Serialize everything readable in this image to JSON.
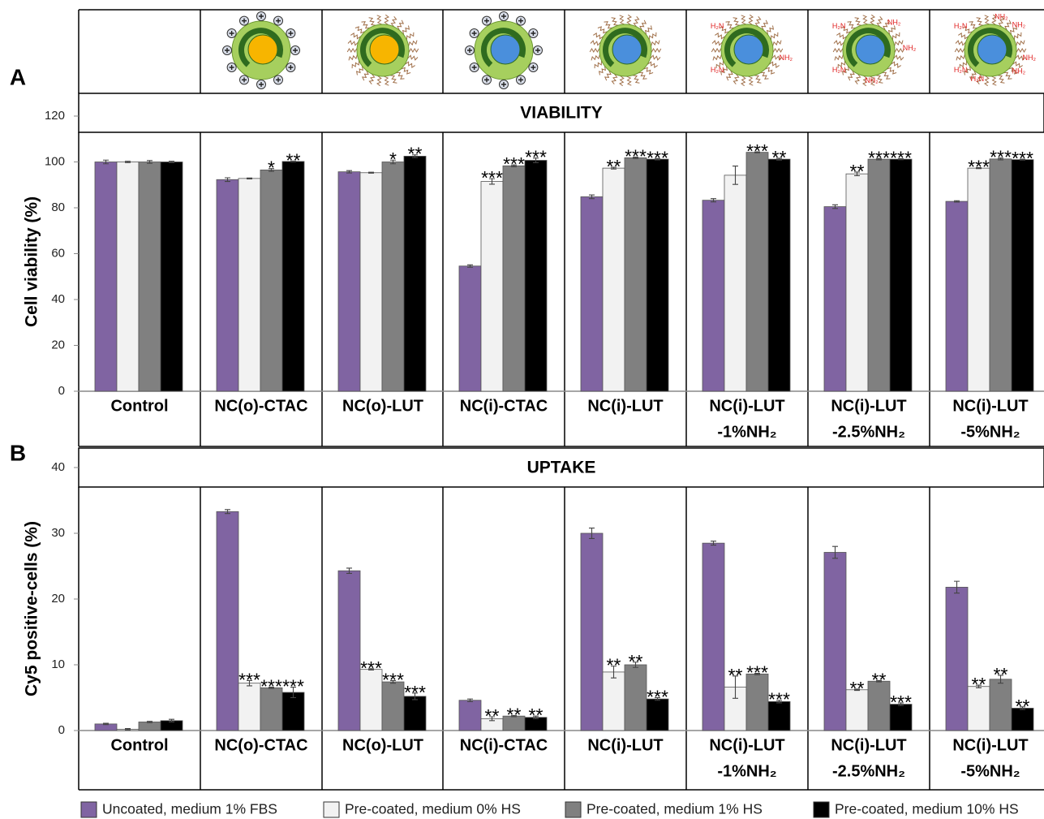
{
  "chart_data": [
    {
      "type": "bar",
      "panel": "A",
      "title": "VIABILITY",
      "y_label": "Cell viability (%)",
      "ylim": [
        0,
        120
      ],
      "yticks": [
        0,
        20,
        40,
        60,
        80,
        100,
        120
      ],
      "categories": [
        [
          "Control"
        ],
        [
          "NC(o)-CTAC"
        ],
        [
          "NC(o)-LUT"
        ],
        [
          "NC(i)-CTAC"
        ],
        [
          "NC(i)-LUT"
        ],
        [
          "NC(i)-LUT",
          "-1%NH₂"
        ],
        [
          "NC(i)-LUT",
          "-2.5%NH₂"
        ],
        [
          "NC(i)-LUT",
          "-5%NH₂"
        ]
      ],
      "series": [
        {
          "color": "#8064a2",
          "values": [
            100,
            92.3,
            95.7,
            54.6,
            84.8,
            83.3,
            80.5,
            82.8
          ],
          "errors": [
            0.8,
            0.8,
            0.5,
            0.5,
            0.8,
            0.7,
            0.8,
            0.3
          ],
          "annotations": [
            null,
            null,
            null,
            null,
            null,
            null,
            null,
            null
          ]
        },
        {
          "color": "#f2f2f2",
          "values": [
            100,
            92.8,
            95.3,
            91.5,
            97.3,
            94.2,
            94.8,
            97.3
          ],
          "errors": [
            0.3,
            0.2,
            0.2,
            1.2,
            0.4,
            4.0,
            0.8,
            0.2
          ],
          "annotations": [
            null,
            null,
            null,
            "***",
            "**",
            null,
            "**",
            "***"
          ]
        },
        {
          "color": "#808080",
          "values": [
            100,
            96.5,
            100,
            98.3,
            101.8,
            104.2,
            101.2,
            101.3
          ],
          "errors": [
            0.6,
            0.6,
            0.8,
            0.4,
            0.3,
            0.2,
            0.3,
            0.4
          ],
          "annotations": [
            null,
            "*",
            "*",
            "***",
            "***",
            "***",
            "***",
            "***"
          ]
        },
        {
          "color": "#000000",
          "values": [
            100,
            100.2,
            102.5,
            100.7,
            101.2,
            101.2,
            101.2,
            101
          ],
          "errors": [
            0.3,
            0.2,
            0.6,
            1.0,
            0.3,
            0.4,
            0.2,
            0.2
          ],
          "annotations": [
            null,
            "**",
            "**",
            "***",
            "***",
            "**",
            "***",
            "***"
          ]
        }
      ]
    },
    {
      "type": "bar",
      "panel": "B",
      "title": "UPTAKE",
      "y_label": "Cy5 positive-cells (%)",
      "ylim": [
        0,
        40
      ],
      "yticks": [
        0,
        10,
        20,
        30,
        40
      ],
      "categories": [
        [
          "Control"
        ],
        [
          "NC(o)-CTAC"
        ],
        [
          "NC(o)-LUT"
        ],
        [
          "NC(i)-CTAC"
        ],
        [
          "NC(i)-LUT"
        ],
        [
          "NC(i)-LUT",
          "-1%NH₂"
        ],
        [
          "NC(i)-LUT",
          "-2.5%NH₂"
        ],
        [
          "NC(i)-LUT",
          "-5%NH₂"
        ]
      ],
      "series": [
        {
          "name": "Uncoated, medium 1% FBS",
          "color": "#8064a2",
          "values": [
            1.0,
            33.3,
            24.3,
            4.6,
            30.0,
            28.5,
            27.1,
            21.8
          ],
          "errors": [
            0.1,
            0.3,
            0.4,
            0.2,
            0.8,
            0.3,
            0.9,
            0.9
          ],
          "annotations": [
            null,
            null,
            null,
            null,
            null,
            null,
            null,
            null
          ]
        },
        {
          "name": "Pre-coated, medium 0% HS",
          "color": "#f2f2f2",
          "values": [
            0.2,
            7.2,
            9.3,
            1.8,
            8.9,
            6.6,
            6.2,
            6.7
          ],
          "errors": [
            0.1,
            0.4,
            0.1,
            0.3,
            0.9,
            1.7,
            0.1,
            0.2
          ],
          "annotations": [
            null,
            "***",
            "***",
            "**",
            "**",
            "**",
            "**",
            "**"
          ]
        },
        {
          "name": "Pre-coated, medium 1% HS",
          "color": "#808080",
          "values": [
            1.3,
            6.5,
            7.4,
            2.2,
            10.0,
            8.6,
            7.5,
            7.8
          ],
          "errors": [
            0.1,
            0.1,
            0.2,
            0.1,
            0.4,
            0.1,
            0.1,
            0.6
          ],
          "annotations": [
            null,
            "***",
            "***",
            "**",
            "**",
            "***",
            "**",
            "**"
          ]
        },
        {
          "name": "Pre-coated, medium 10% HS",
          "color": "#000000",
          "values": [
            1.5,
            5.8,
            5.2,
            2.0,
            4.8,
            4.4,
            4.0,
            3.4
          ],
          "errors": [
            0.2,
            0.8,
            0.5,
            0.2,
            0.2,
            0.2,
            0.2,
            0.2
          ],
          "annotations": [
            null,
            "***",
            "***",
            "**",
            "***",
            "***",
            "***",
            "**"
          ]
        }
      ]
    }
  ],
  "icon_labels": [
    "NH₂",
    "H₂N"
  ]
}
